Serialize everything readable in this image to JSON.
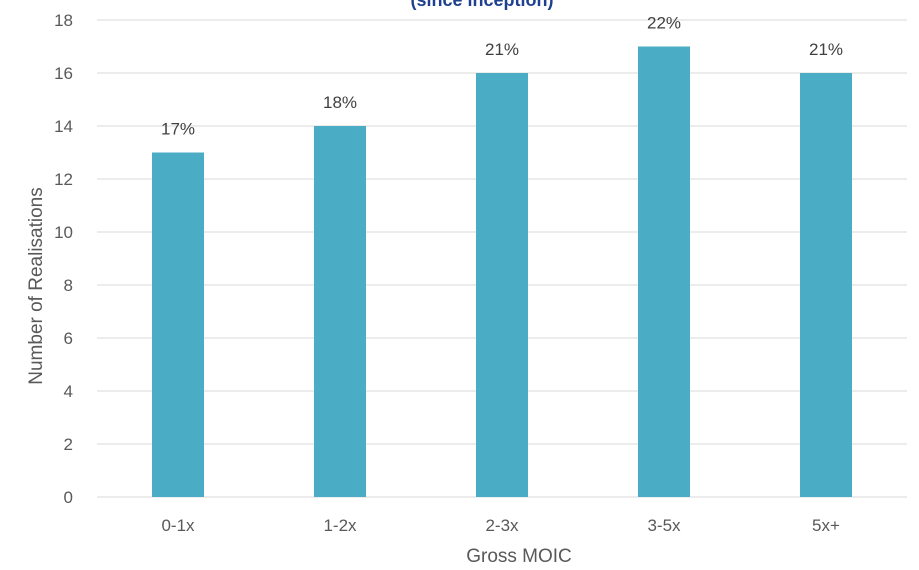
{
  "chart_data": {
    "type": "bar",
    "title": "(since inception)",
    "xlabel": "Gross MOIC",
    "ylabel": "Number of Realisations",
    "categories": [
      "0-1x",
      "1-2x",
      "2-3x",
      "3-5x",
      "5x+"
    ],
    "values": [
      13,
      14,
      16,
      17,
      16
    ],
    "data_labels": [
      "17%",
      "18%",
      "21%",
      "22%",
      "21%"
    ],
    "ylim": [
      0,
      18
    ],
    "yticks": [
      0,
      2,
      4,
      6,
      8,
      10,
      12,
      14,
      16,
      18
    ],
    "grid": true,
    "legend": "none",
    "bar_color": "#4bacc6"
  }
}
